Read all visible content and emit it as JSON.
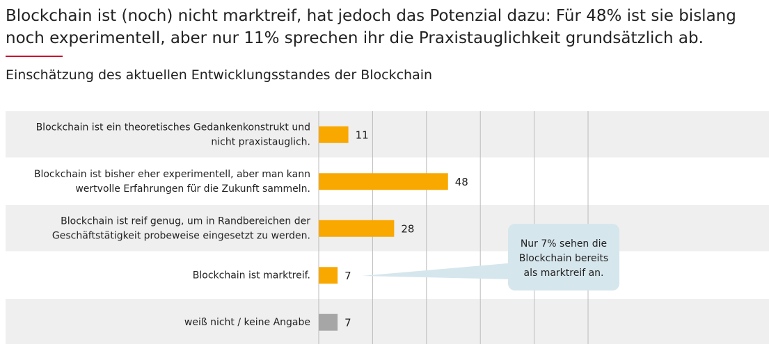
{
  "chart_data": {
    "type": "hbar",
    "title": [
      "Blockchain ist (noch) nicht marktreif, hat jedoch das Potenzial dazu: Für 48% ist sie bislang",
      "noch experimentell, aber nur 11% sprechen ihr die Praxistauglichkeit grundsätzlich ab."
    ],
    "subtitle": "Einschätzung des aktuellen Entwicklungsstandes der Blockchain",
    "categories": [
      [
        "Blockchain ist ein theoretisches Gedankenkonstrukt und",
        "nicht praxistauglich."
      ],
      [
        "Blockchain ist bisher eher experimentell, aber man kann",
        "wertvolle Erfahrungen für die Zukunft sammeln."
      ],
      [
        "Blockchain ist reif genug, um in Randbereichen der",
        "Geschäftstätigkeit probeweise eingesetzt zu werden."
      ],
      [
        "Blockchain ist marktreif."
      ],
      [
        "weiß nicht / keine Angabe"
      ]
    ],
    "values": [
      11,
      48,
      28,
      7,
      7
    ],
    "colors": [
      "#f9a800",
      "#f9a800",
      "#f9a800",
      "#f9a800",
      "#a6a6a6"
    ],
    "xlim": [
      0,
      100
    ],
    "xticks": [
      0,
      20,
      40,
      60,
      80,
      100
    ],
    "grid": true,
    "annotation": [
      "Nur 7% sehen die",
      "Blockchain bereits",
      "als marktreif an."
    ]
  }
}
